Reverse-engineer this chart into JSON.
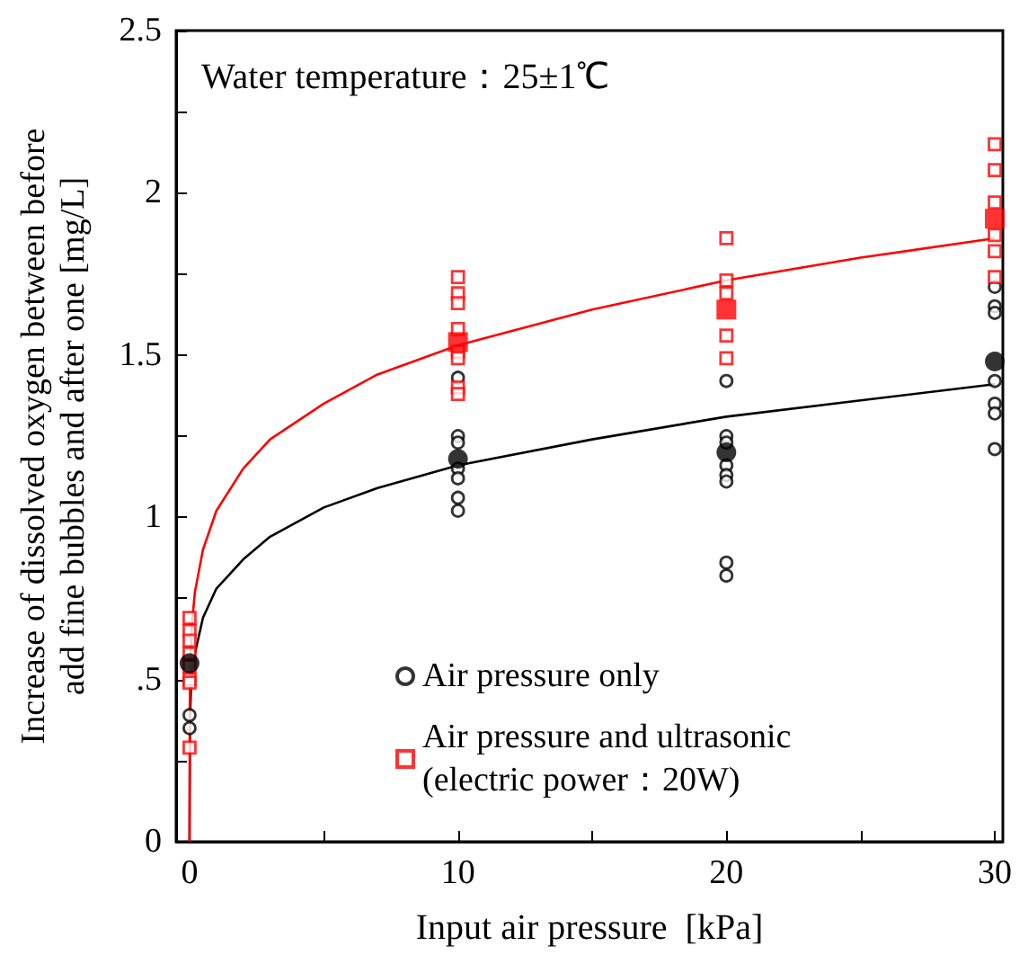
{
  "chart_data": {
    "type": "scatter",
    "xlabel": "Input air pressure  [kPa]",
    "ylabel": "Increase of dissolved oxygen between before\nadd fine bubbles and after one [mg/L]",
    "annotations": [
      "Water temperature：25±1℃"
    ],
    "xlim": [
      -0.5,
      30.3
    ],
    "ylim": [
      0,
      2.5
    ],
    "xticks": [
      0,
      {
        "value": 5,
        "label": null
      },
      10,
      {
        "value": 15,
        "label": null
      },
      20,
      {
        "value": 25,
        "label": null
      },
      30
    ],
    "yticks": [
      0,
      {
        "value": 0.25,
        "label": null
      },
      {
        "value": 0.5,
        "label": ".5"
      },
      {
        "value": 0.75,
        "label": null
      },
      1,
      {
        "value": 1.25,
        "label": null
      },
      1.5,
      {
        "value": 1.75,
        "label": null
      },
      2,
      {
        "value": 2.25,
        "label": null
      },
      2.5
    ],
    "grid": false,
    "legend": "bottom right",
    "series": [
      {
        "type": "line",
        "color": "#000000",
        "marker": "none",
        "x": [
          0,
          0.02,
          0.05,
          0.1,
          0.2,
          0.5,
          1,
          2,
          3,
          5,
          7,
          10,
          15,
          20,
          25,
          30
        ],
        "values": [
          0,
          0.39,
          0.46,
          0.52,
          0.58,
          0.69,
          0.78,
          0.87,
          0.94,
          1.03,
          1.09,
          1.16,
          1.24,
          1.31,
          1.36,
          1.41
        ]
      },
      {
        "type": "line",
        "color": "#ff0000",
        "marker": "none",
        "x": [
          0,
          0.005,
          0.02,
          0.05,
          0.1,
          0.2,
          0.5,
          1,
          2,
          3,
          5,
          7,
          10,
          15,
          20,
          25,
          30
        ],
        "values": [
          0,
          0.4,
          0.51,
          0.6,
          0.68,
          0.77,
          0.9,
          1.02,
          1.15,
          1.24,
          1.35,
          1.44,
          1.53,
          1.64,
          1.73,
          1.8,
          1.86
        ]
      },
      {
        "name": "Air pressure only",
        "color": "#000000",
        "marker": "circle",
        "x": [
          0,
          0,
          10,
          10,
          10,
          10,
          10,
          10,
          10,
          20,
          20,
          20,
          20,
          20,
          20,
          20,
          20,
          30,
          30,
          30,
          30,
          30,
          30,
          30
        ],
        "values": [
          0.39,
          0.35,
          1.43,
          1.25,
          1.23,
          1.15,
          1.12,
          1.06,
          1.02,
          1.42,
          1.25,
          1.23,
          1.16,
          1.13,
          1.11,
          0.86,
          0.82,
          1.71,
          1.65,
          1.63,
          1.42,
          1.35,
          1.32,
          1.21
        ]
      },
      {
        "name": "Air pressure and ultrasonic\n(electric power：20W)",
        "color": "#ff0000",
        "marker": "square",
        "x": [
          0,
          0,
          0,
          0,
          0,
          0,
          0,
          0,
          10,
          10,
          10,
          10,
          10,
          10,
          10,
          10,
          20,
          20,
          20,
          20,
          20,
          30,
          30,
          30,
          30,
          30,
          30
        ],
        "values": [
          0.69,
          0.65,
          0.62,
          0.58,
          0.54,
          0.5,
          0.49,
          0.29,
          1.74,
          1.69,
          1.66,
          1.58,
          1.51,
          1.49,
          1.4,
          1.38,
          1.86,
          1.73,
          1.69,
          1.56,
          1.49,
          2.15,
          2.07,
          1.97,
          1.87,
          1.82,
          1.74
        ]
      },
      {
        "color": "#ff0000",
        "marker": "square",
        "x": [
          10,
          20,
          30
        ],
        "values": [
          1.54,
          1.64,
          1.92
        ]
      },
      {
        "color": "#000000",
        "marker": "circle",
        "x": [
          0,
          10,
          20,
          30
        ],
        "values": [
          0.55,
          1.18,
          1.2,
          1.48
        ]
      }
    ]
  }
}
